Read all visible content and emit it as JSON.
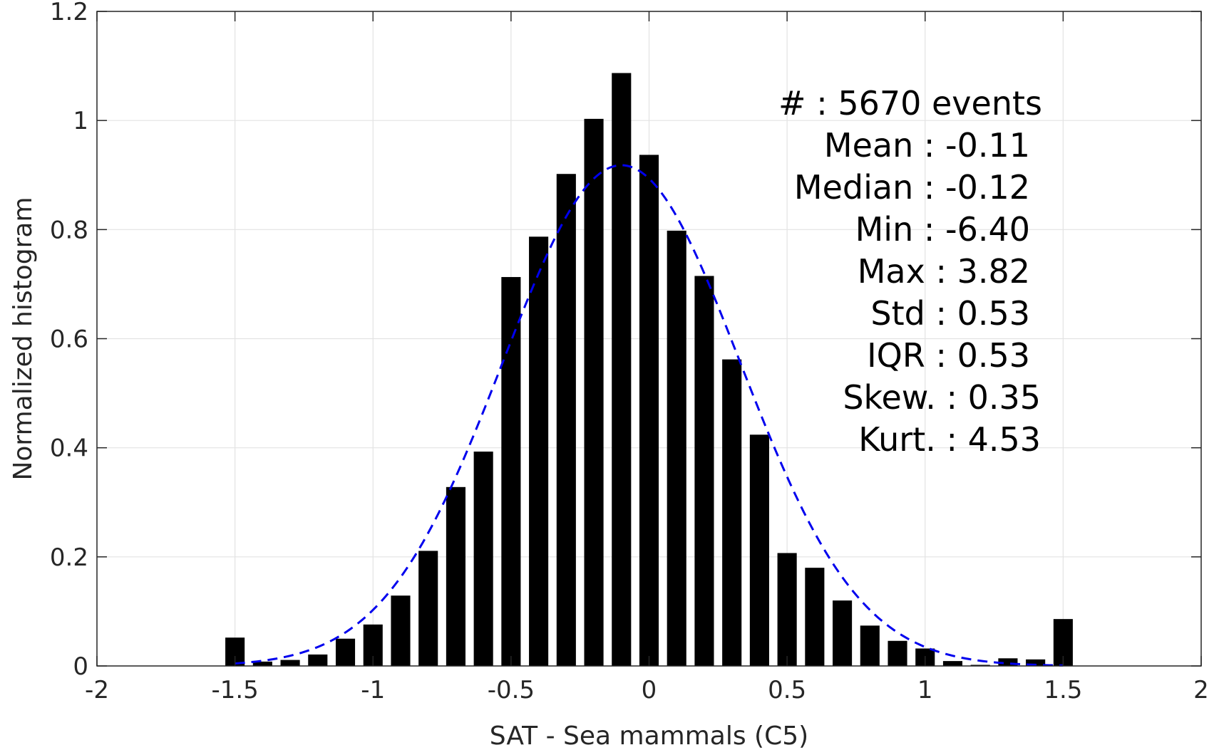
{
  "chart_data": {
    "type": "bar",
    "title": "",
    "xlabel": "SAT - Sea mammals (C5)",
    "ylabel": "Normalized histogram",
    "xlim": [
      -2,
      2
    ],
    "ylim": [
      0,
      1.2
    ],
    "grid": true,
    "xticks": [
      "-2",
      "-1.5",
      "-1",
      "-0.5",
      "0",
      "0.5",
      "1",
      "1.5",
      "2"
    ],
    "xtick_values": [
      -2,
      -1.5,
      -1,
      -0.5,
      0,
      0.5,
      1,
      1.5,
      2
    ],
    "yticks": [
      "0",
      "0.2",
      "0.4",
      "0.6",
      "0.8",
      "1",
      "1.2"
    ],
    "ytick_values": [
      0,
      0.2,
      0.4,
      0.6,
      0.8,
      1,
      1.2
    ],
    "bar_width": 0.07,
    "bars": [
      {
        "x": -1.5,
        "y": 0.052
      },
      {
        "x": -1.4,
        "y": 0.008
      },
      {
        "x": -1.3,
        "y": 0.011
      },
      {
        "x": -1.2,
        "y": 0.021
      },
      {
        "x": -1.1,
        "y": 0.05
      },
      {
        "x": -1.0,
        "y": 0.076
      },
      {
        "x": -0.9,
        "y": 0.129
      },
      {
        "x": -0.8,
        "y": 0.211
      },
      {
        "x": -0.7,
        "y": 0.328
      },
      {
        "x": -0.6,
        "y": 0.393
      },
      {
        "x": -0.5,
        "y": 0.713
      },
      {
        "x": -0.4,
        "y": 0.787
      },
      {
        "x": -0.3,
        "y": 0.902
      },
      {
        "x": -0.2,
        "y": 1.003
      },
      {
        "x": -0.1,
        "y": 1.087
      },
      {
        "x": 0.0,
        "y": 0.937
      },
      {
        "x": 0.1,
        "y": 0.798
      },
      {
        "x": 0.2,
        "y": 0.715
      },
      {
        "x": 0.3,
        "y": 0.562
      },
      {
        "x": 0.4,
        "y": 0.424
      },
      {
        "x": 0.5,
        "y": 0.207
      },
      {
        "x": 0.6,
        "y": 0.18
      },
      {
        "x": 0.7,
        "y": 0.12
      },
      {
        "x": 0.8,
        "y": 0.074
      },
      {
        "x": 0.9,
        "y": 0.046
      },
      {
        "x": 1.0,
        "y": 0.032
      },
      {
        "x": 1.1,
        "y": 0.009
      },
      {
        "x": 1.2,
        "y": 0.002
      },
      {
        "x": 1.3,
        "y": 0.014
      },
      {
        "x": 1.4,
        "y": 0.012
      },
      {
        "x": 1.5,
        "y": 0.086
      }
    ],
    "fit_curve": {
      "style": "dashed",
      "color": "#0000ee",
      "mean": -0.1,
      "std": 0.43,
      "peak": 0.918,
      "x_range": [
        -1.5,
        1.5
      ]
    },
    "bar_color": "#000000"
  },
  "stats": [
    {
      "label": "#  : 5670 events"
    },
    {
      "label": "Mean : -0.11"
    },
    {
      "label": "Median : -0.12"
    },
    {
      "label": "Min : -6.40"
    },
    {
      "label": "Max : 3.82"
    },
    {
      "label": "Std : 0.53"
    },
    {
      "label": "IQR : 0.53"
    },
    {
      "label": "Skew. : 0.35"
    },
    {
      "label": "Kurt. : 4.53"
    }
  ]
}
